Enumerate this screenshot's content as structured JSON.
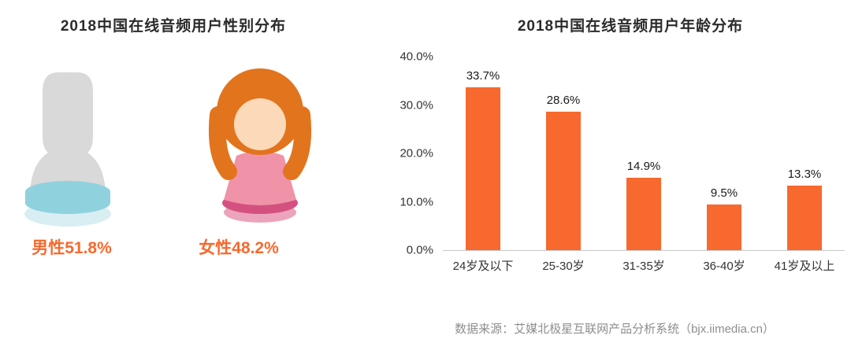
{
  "colors": {
    "accent": "#f7692e",
    "bar": "#f7692e",
    "title_text": "#2b2b2b",
    "axis_text": "#333333",
    "footer_text": "#8e8e8e"
  },
  "gender_panel": {
    "title": "2018中国在线音频用户性别分布",
    "male_label": "男性51.8%",
    "female_label": "女性48.2%"
  },
  "age_panel": {
    "title": "2018中国在线音频用户年龄分布"
  },
  "footer": {
    "source": "数据来源：艾媒北极星互联网产品分析系统（bjx.iimedia.cn）"
  },
  "chart_data": [
    {
      "type": "pie",
      "title": "2018中国在线音频用户性别分布",
      "categories": [
        "男性",
        "女性"
      ],
      "values": [
        51.8,
        48.2
      ],
      "unit": "%",
      "labels": [
        "男性51.8%",
        "女性48.2%"
      ]
    },
    {
      "type": "bar",
      "title": "2018中国在线音频用户年龄分布",
      "categories": [
        "24岁及以下",
        "25-30岁",
        "31-35岁",
        "36-40岁",
        "41岁及以上"
      ],
      "values": [
        33.7,
        28.6,
        14.9,
        9.5,
        13.3
      ],
      "value_labels": [
        "33.7%",
        "28.6%",
        "14.9%",
        "9.5%",
        "13.3%"
      ],
      "yticks": [
        "40.0%",
        "30.0%",
        "20.0%",
        "10.0%",
        "0.0%"
      ],
      "ylim": [
        0,
        40
      ],
      "bar_color": "#f7692e",
      "grid": false,
      "legend": false
    }
  ]
}
